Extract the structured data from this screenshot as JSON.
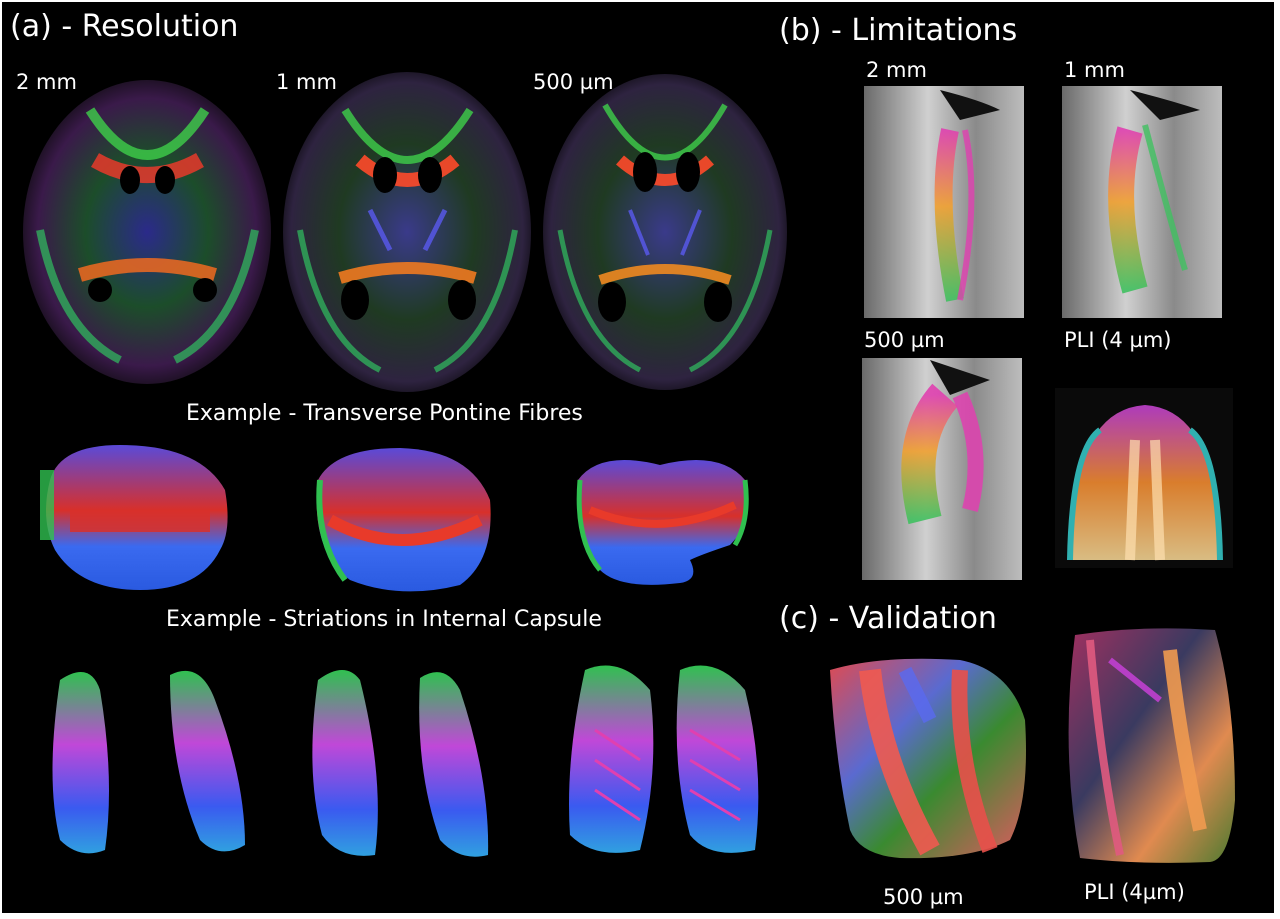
{
  "panel_a": {
    "title": "(a) - Resolution",
    "resolutions": [
      "2 mm",
      "1 mm",
      "500 µm"
    ],
    "example_pontine": "Example - Transverse Pontine Fibres",
    "example_capsule": "Example - Striations in Internal Capsule"
  },
  "panel_b": {
    "title": "(b)  - Limitations",
    "labels": [
      "2 mm",
      "1 mm",
      "500 µm",
      "PLI (4 µm)"
    ]
  },
  "panel_c": {
    "title": "(c) - Validation",
    "labels": [
      "500 µm",
      "PLI (4µm)"
    ]
  },
  "colors": {
    "background": "#000000",
    "text": "#ffffff",
    "fiber_red": "#e8322a",
    "fiber_green": "#3fbf3a",
    "fiber_blue": "#3a5cf0",
    "fiber_magenta": "#d23ad8",
    "fiber_orange": "#f0a030",
    "slice_gray": "#9a9a9a"
  }
}
